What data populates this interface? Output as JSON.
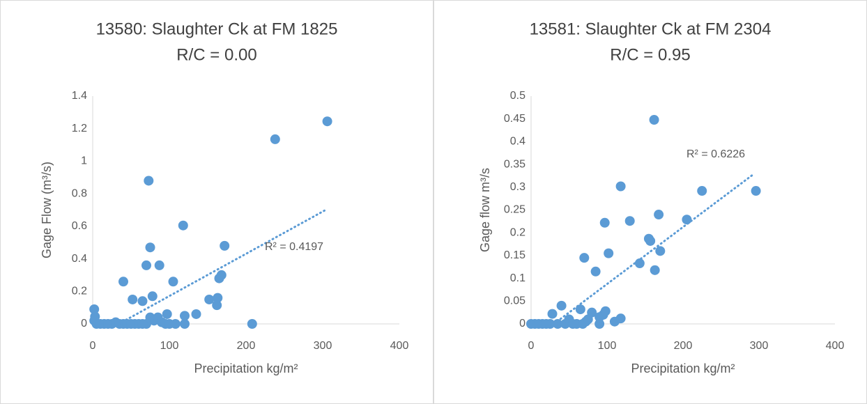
{
  "chart_data": [
    {
      "type": "scatter",
      "title": "13580: Slaughter Ck at FM 1825",
      "subtitle": "R/C = 0.00",
      "x_label": "Precipitation kg/m²",
      "y_label": "Gage Flow (m³/s)",
      "color": "#5b9bd5",
      "xlim": [
        0,
        400
      ],
      "xticks": [
        0,
        100,
        200,
        300,
        400
      ],
      "ylim": [
        0,
        1.4
      ],
      "yticks": [
        0,
        0.2,
        0.4,
        0.6,
        0.8,
        1,
        1.2,
        1.4
      ],
      "x": [
        2,
        3,
        2,
        5,
        10,
        15,
        20,
        25,
        30,
        35,
        40,
        45,
        50,
        55,
        40,
        52,
        65,
        70,
        73,
        75,
        78,
        87,
        97,
        75,
        80,
        85,
        90,
        95,
        70,
        105,
        108,
        118,
        120,
        120,
        135,
        152,
        162,
        163,
        165,
        168,
        172,
        208,
        238,
        306,
        60,
        65,
        100
      ],
      "values": [
        0.09,
        0.045,
        0.02,
        0,
        0,
        0,
        0,
        0,
        0.01,
        0,
        0,
        0,
        0,
        0,
        0.26,
        0.15,
        0.14,
        0.36,
        0.88,
        0.47,
        0.17,
        0.36,
        0.06,
        0.04,
        0.02,
        0.04,
        0.01,
        0,
        0,
        0.26,
        0,
        0.605,
        0.05,
        0,
        0.06,
        0.15,
        0.115,
        0.16,
        0.28,
        0.3,
        0.48,
        0,
        1.135,
        1.245,
        0,
        0,
        0
      ],
      "trendline": {
        "x": [
          34,
          306
        ],
        "values": [
          0,
          0.706
        ],
        "label": "R² = 0.4197"
      }
    },
    {
      "type": "scatter",
      "title": "13581: Slaughter Ck at FM 2304",
      "subtitle": "R/C = 0.95",
      "x_label": "Precipitation kg/m²",
      "y_label": "Gage flow m³/s",
      "color": "#5b9bd5",
      "xlim": [
        0,
        400
      ],
      "xticks": [
        0,
        100,
        200,
        300,
        400
      ],
      "ylim": [
        0,
        0.5
      ],
      "yticks": [
        0,
        0.05,
        0.1,
        0.15,
        0.2,
        0.25,
        0.3,
        0.35,
        0.4,
        0.45,
        0.5
      ],
      "x": [
        0,
        5,
        10,
        15,
        20,
        25,
        28,
        35,
        40,
        45,
        50,
        55,
        60,
        65,
        68,
        70,
        72,
        75,
        80,
        85,
        90,
        95,
        97,
        98,
        90,
        102,
        110,
        118,
        118,
        130,
        143,
        155,
        157,
        162,
        163,
        168,
        170,
        205,
        225,
        296
      ],
      "values": [
        0,
        0,
        0,
        0,
        0,
        0,
        0.022,
        0,
        0.04,
        0,
        0.01,
        0,
        0,
        0.032,
        0,
        0.145,
        0.005,
        0.01,
        0.025,
        0.115,
        0.015,
        0.02,
        0.222,
        0.028,
        0,
        0.155,
        0.005,
        0.302,
        0.012,
        0.226,
        0.133,
        0.187,
        0.182,
        0.448,
        0.118,
        0.24,
        0.16,
        0.229,
        0.292,
        0.292
      ],
      "trendline": {
        "x": [
          30,
          294
        ],
        "values": [
          0,
          0.33
        ],
        "label": "R² = 0.6226"
      }
    }
  ]
}
